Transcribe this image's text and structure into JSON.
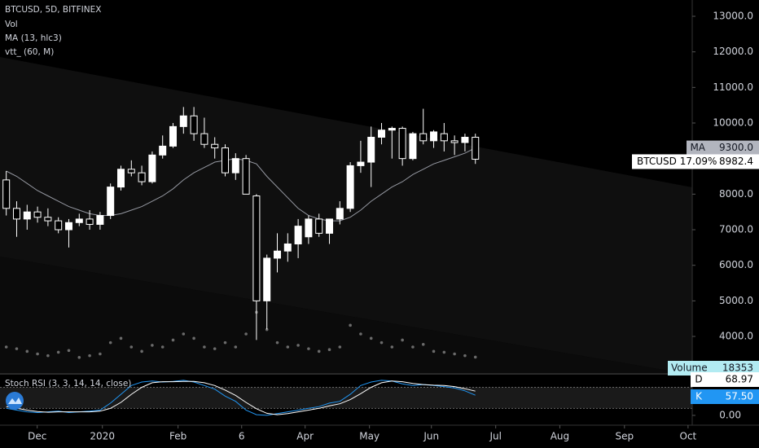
{
  "chart_data": {
    "type": "candlestick",
    "title": "BTCUSD, 5D, BITFINEX",
    "indicator_labels": [
      "Vol",
      "MA (13, hlc3)",
      "vtt_ (60, M)"
    ],
    "xlim": [
      -0.6,
      65.8
    ],
    "xticks": [
      {
        "value": 2.97,
        "label": "Dec"
      },
      {
        "value": 9.22,
        "label": "2020"
      },
      {
        "value": 16.48,
        "label": "Feb"
      },
      {
        "value": 22.58,
        "label": "6"
      },
      {
        "value": 28.67,
        "label": "Apr"
      },
      {
        "value": 34.84,
        "label": "May"
      },
      {
        "value": 40.78,
        "label": "Jun"
      },
      {
        "value": 46.95,
        "label": "Jul"
      },
      {
        "value": 53.1,
        "label": "Aug"
      },
      {
        "value": 59.3,
        "label": "Sep"
      },
      {
        "value": 65.4,
        "label": "Oct"
      }
    ],
    "ylim": [
      2970,
      13458
    ],
    "yticks": [
      {
        "value": 4000,
        "label": "4000.0"
      },
      {
        "value": 5000,
        "label": "5000.0"
      },
      {
        "value": 6000,
        "label": "6000.0"
      },
      {
        "value": 7000,
        "label": "7000.0"
      },
      {
        "value": 8000,
        "label": "8000.0"
      },
      {
        "value": 9000,
        "label": "9000.0"
      },
      {
        "value": 10000,
        "label": "10000.0"
      },
      {
        "value": 11000,
        "label": "11000.0"
      },
      {
        "value": 12000,
        "label": "12000.0"
      },
      {
        "value": 13000,
        "label": "13000.0"
      }
    ],
    "up_color": "#ffffff",
    "down_color": "#000000",
    "open": [
      8400,
      7600,
      7300,
      7500,
      7350,
      7250,
      7000,
      7200,
      7300,
      7150,
      7400,
      8200,
      8700,
      8600,
      8350,
      9100,
      9350,
      9900,
      10200,
      9700,
      9400,
      9300,
      8600,
      9000,
      7950,
      5000,
      6200,
      6400,
      6600,
      6800,
      7300,
      6900,
      7300,
      7600,
      8800,
      8900,
      9600,
      9800,
      9850,
      9000,
      9700,
      9500,
      9700,
      9500,
      9450,
      9600
    ],
    "high": [
      8650,
      7800,
      7700,
      7650,
      7600,
      7350,
      7300,
      7450,
      7550,
      7500,
      8300,
      8800,
      8950,
      8800,
      9200,
      9650,
      10000,
      10450,
      10450,
      10150,
      9600,
      9400,
      9150,
      9100,
      8000,
      6300,
      6900,
      6900,
      7300,
      7400,
      7450,
      7300,
      7800,
      8900,
      9500,
      9900,
      10000,
      9900,
      9900,
      9750,
      10400,
      9800,
      10000,
      9650,
      9700,
      9700
    ],
    "low": [
      7400,
      6800,
      7000,
      7200,
      7100,
      6900,
      6500,
      7100,
      7000,
      7000,
      7300,
      8100,
      8500,
      8250,
      8300,
      9000,
      9300,
      9700,
      9500,
      9300,
      9000,
      8500,
      8400,
      8000,
      3900,
      4200,
      5800,
      6100,
      6200,
      6600,
      6800,
      6600,
      7150,
      7500,
      8600,
      8200,
      9400,
      9000,
      8800,
      8950,
      9400,
      9300,
      9200,
      9100,
      9200,
      8850
    ],
    "close": [
      7600,
      7300,
      7500,
      7350,
      7250,
      7000,
      7200,
      7300,
      7150,
      7400,
      8200,
      8700,
      8600,
      8350,
      9100,
      9350,
      9900,
      10200,
      9700,
      9400,
      9300,
      8600,
      9000,
      8000,
      5000,
      6200,
      6400,
      6600,
      7100,
      7300,
      6900,
      7300,
      7600,
      8800,
      8900,
      9600,
      9800,
      9850,
      9000,
      9700,
      9500,
      9750,
      9500,
      9450,
      9600,
      8982.4
    ],
    "ma": {
      "name": "MA",
      "color": "#9598a1",
      "values": [
        8650,
        8500,
        8300,
        8100,
        7950,
        7800,
        7650,
        7550,
        7450,
        7400,
        7400,
        7450,
        7550,
        7650,
        7800,
        7950,
        8150,
        8400,
        8600,
        8750,
        8900,
        8950,
        9000,
        8950,
        8850,
        8500,
        8200,
        7900,
        7600,
        7400,
        7300,
        7250,
        7250,
        7350,
        7550,
        7800,
        8000,
        8200,
        8350,
        8550,
        8700,
        8850,
        8950,
        9050,
        9150,
        9300
      ],
      "last_label": "9300.0"
    },
    "price_label": "BTCUSD 17.09%",
    "close_label": "8982.4",
    "volume": {
      "name": "Volume",
      "color": "#6b6b6b",
      "ylim": [
        0,
        150000
      ],
      "values": [
        30000,
        28000,
        25000,
        22000,
        20000,
        24000,
        26000,
        18000,
        20000,
        22000,
        35000,
        40000,
        30000,
        25000,
        32000,
        30000,
        38000,
        45000,
        40000,
        30000,
        28000,
        35000,
        30000,
        45000,
        70000,
        50000,
        35000,
        30000,
        32000,
        28000,
        25000,
        27000,
        30000,
        55000,
        45000,
        40000,
        35000,
        30000,
        38000,
        30000,
        33000,
        25000,
        24000,
        22000,
        20000,
        18353
      ]
    },
    "stoch": {
      "title": "Stoch RSI (3, 3, 14, 14, close)",
      "ylim": [
        -28,
        116
      ],
      "yticks": [
        {
          "value": 0,
          "label": "0.00"
        }
      ],
      "bands": [
        20,
        80
      ],
      "series": [
        {
          "name": "K",
          "color": "#2196f3",
          "last_label": "57.50",
          "values": [
            20,
            15,
            10,
            8,
            10,
            12,
            8,
            10,
            12,
            15,
            35,
            60,
            85,
            95,
            98,
            95,
            97,
            100,
            95,
            85,
            75,
            55,
            40,
            15,
            2,
            0,
            5,
            10,
            15,
            20,
            25,
            35,
            40,
            60,
            85,
            95,
            100,
            98,
            90,
            85,
            88,
            85,
            82,
            78,
            70,
            57.5
          ]
        },
        {
          "name": "D",
          "color": "#ffffff",
          "values": [
            25,
            20,
            15,
            11,
            9,
            10,
            10,
            10,
            10,
            12,
            20,
            37,
            60,
            80,
            93,
            96,
            96,
            97,
            97,
            93,
            85,
            72,
            57,
            37,
            19,
            6,
            2,
            5,
            10,
            15,
            20,
            27,
            33,
            45,
            62,
            80,
            93,
            98,
            96,
            91,
            88,
            86,
            85,
            82,
            76,
            68.97
          ]
        }
      ]
    }
  }
}
